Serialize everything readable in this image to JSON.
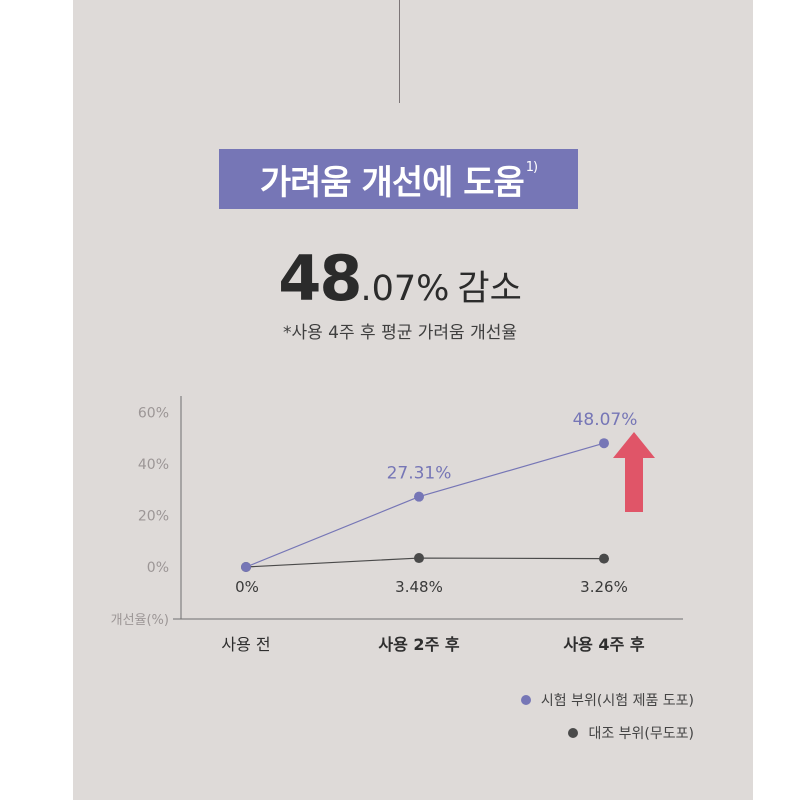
{
  "title": {
    "text": "가려움 개선에 도움",
    "footnote_mark": "1)"
  },
  "headline": {
    "value_int": "48",
    "value_dec": ".07%",
    "word": "감소"
  },
  "subnote": "*사용 4주 후 평균 가려움 개선율",
  "colors": {
    "test": "#7676b6",
    "control": "#4a4a4a",
    "arrow": "#e05568",
    "tick": "#9c9696",
    "axis": "#6f6f6f"
  },
  "chart_data": {
    "type": "line",
    "categories": [
      "사용 전",
      "사용 2주 후",
      "사용 4주 후"
    ],
    "ylabel": "개선율(%)",
    "yticks": [
      "60%",
      "40%",
      "20%",
      "0%"
    ],
    "ytick_values": [
      60,
      40,
      20,
      0
    ],
    "ylim": [
      -20,
      60
    ],
    "series": [
      {
        "name": "시험 부위(시험 제품 도포)",
        "values": [
          0,
          27.31,
          48.07
        ],
        "labels": [
          "",
          "27.31%",
          "48.07%"
        ]
      },
      {
        "name": "대조 부위(무도포)",
        "values": [
          0,
          3.48,
          3.26
        ],
        "labels": [
          "0%",
          "3.48%",
          "3.26%"
        ]
      }
    ],
    "grid": false,
    "legend": "bottom-right"
  }
}
